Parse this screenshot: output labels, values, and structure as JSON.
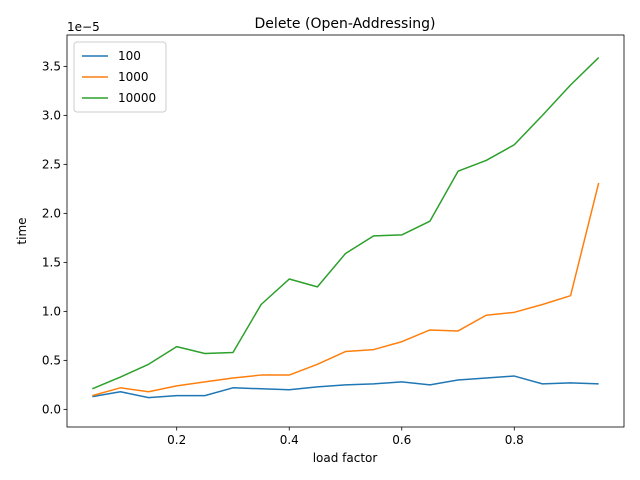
{
  "chart_data": {
    "type": "line",
    "title": "Delete (Open-Addressing)",
    "xlabel": "load factor",
    "ylabel": "time",
    "y_offset_label": "1e−5",
    "xlim": [
      0.005,
      0.995
    ],
    "ylim": [
      -0.18,
      3.82
    ],
    "x_ticks": [
      0.2,
      0.4,
      0.6,
      0.8
    ],
    "x_tick_labels": [
      "0.2",
      "0.4",
      "0.6",
      "0.8"
    ],
    "y_ticks": [
      0.0,
      0.5,
      1.0,
      1.5,
      2.0,
      2.5,
      3.0,
      3.5
    ],
    "y_tick_labels": [
      "0.0",
      "0.5",
      "1.0",
      "1.5",
      "2.0",
      "2.5",
      "3.0",
      "3.5"
    ],
    "legend_position": "top-left",
    "x": [
      0.05,
      0.1,
      0.15,
      0.2,
      0.25,
      0.3,
      0.35,
      0.4,
      0.45,
      0.5,
      0.55,
      0.6,
      0.65,
      0.7,
      0.75,
      0.8,
      0.85,
      0.9,
      0.95
    ],
    "series": [
      {
        "name": "100",
        "color": "#1f77b4",
        "values": [
          0.13,
          0.18,
          0.12,
          0.14,
          0.14,
          0.22,
          0.21,
          0.2,
          0.23,
          0.25,
          0.26,
          0.28,
          0.25,
          0.3,
          0.32,
          0.34,
          0.26,
          0.27,
          0.26
        ]
      },
      {
        "name": "1000",
        "color": "#ff7f0e",
        "values": [
          0.14,
          0.22,
          0.18,
          0.24,
          0.28,
          0.32,
          0.35,
          0.35,
          0.46,
          0.59,
          0.61,
          0.69,
          0.81,
          0.8,
          0.96,
          0.99,
          1.07,
          1.16,
          2.31
        ]
      },
      {
        "name": "10000",
        "color": "#2ca02c",
        "values": [
          0.21,
          0.33,
          0.46,
          0.64,
          0.57,
          0.58,
          1.07,
          1.33,
          1.25,
          1.59,
          1.77,
          1.78,
          1.92,
          2.43,
          2.54,
          2.7,
          3.0,
          3.31,
          3.59
        ]
      }
    ]
  }
}
